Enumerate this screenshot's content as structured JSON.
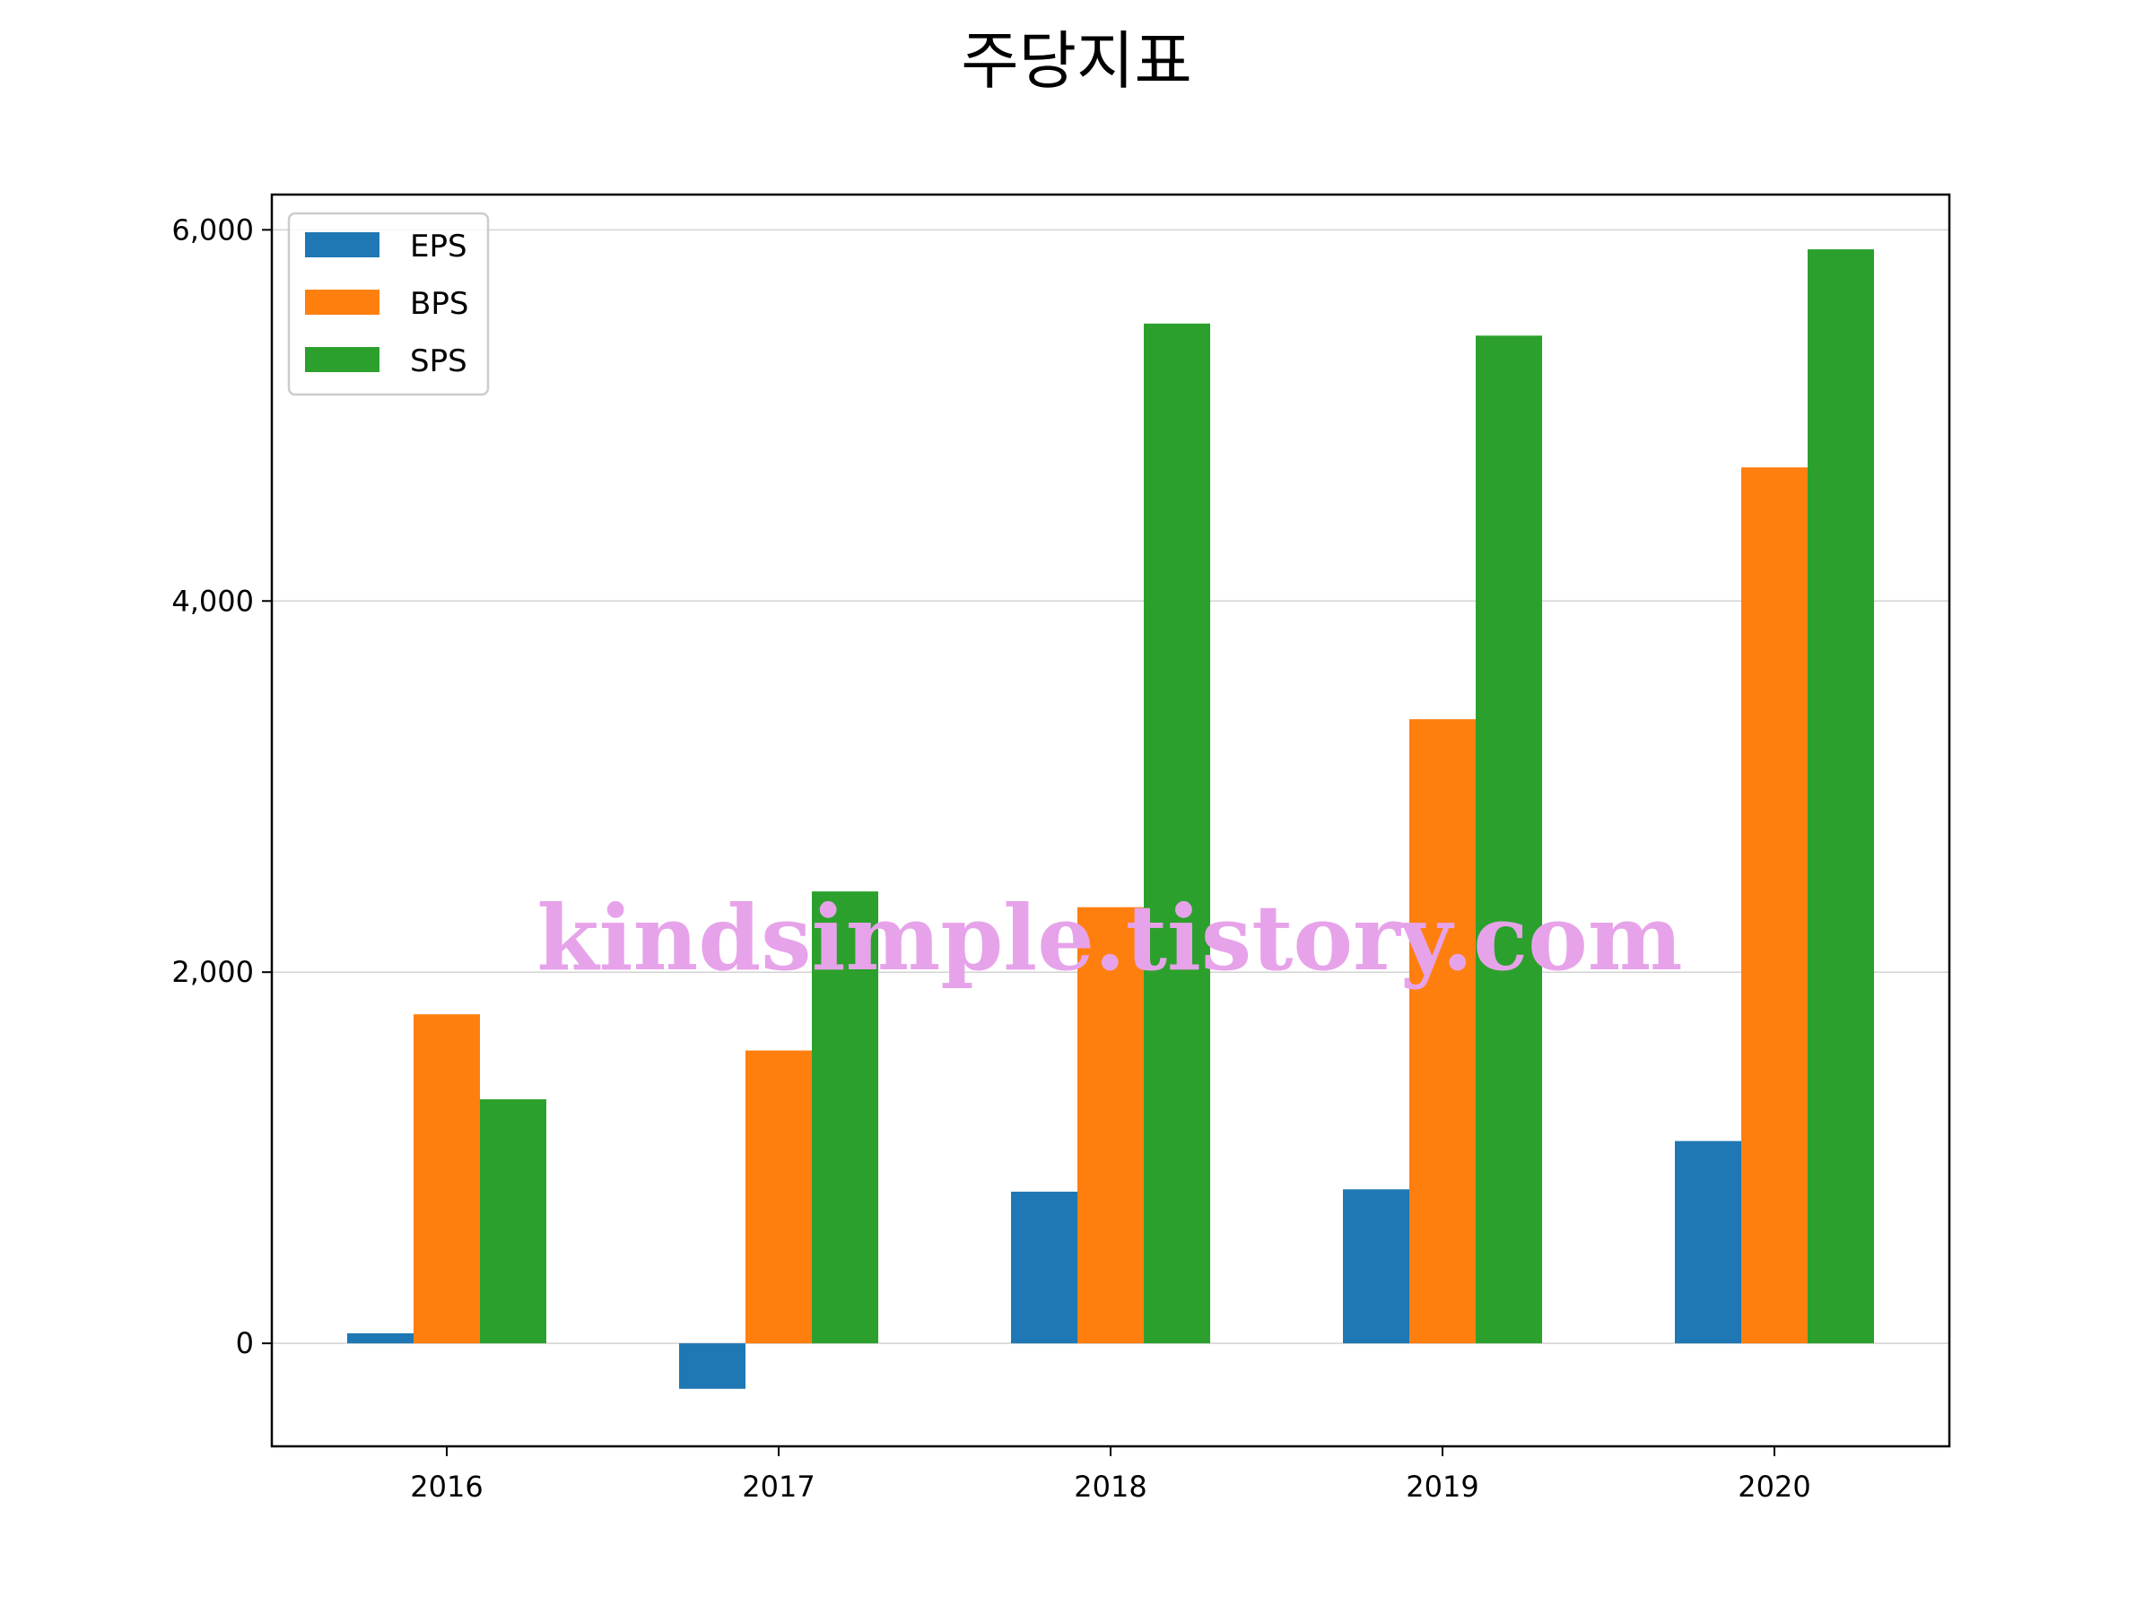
{
  "chart_data": {
    "type": "bar",
    "title": "주당지표",
    "xlabel": "",
    "ylabel": "",
    "categories": [
      "2016",
      "2017",
      "2018",
      "2019",
      "2020"
    ],
    "series": [
      {
        "name": "EPS",
        "color": "#1f77b4",
        "values": [
          54,
          -245,
          817,
          830,
          1090
        ]
      },
      {
        "name": "BPS",
        "color": "#ff7f0e",
        "values": [
          1773,
          1578,
          2350,
          3363,
          4720
        ]
      },
      {
        "name": "SPS",
        "color": "#2ca02c",
        "values": [
          1315,
          2435,
          5495,
          5430,
          5895
        ]
      }
    ],
    "ylim": [
      -555,
      6190
    ],
    "yticks": [
      0,
      2000,
      4000,
      6000
    ],
    "ytick_labels": [
      "0",
      "2,000",
      "4,000",
      "6,000"
    ],
    "grid": "horizontal",
    "legend_position": "top-left",
    "watermark": "kindsimple.tistory.com"
  }
}
